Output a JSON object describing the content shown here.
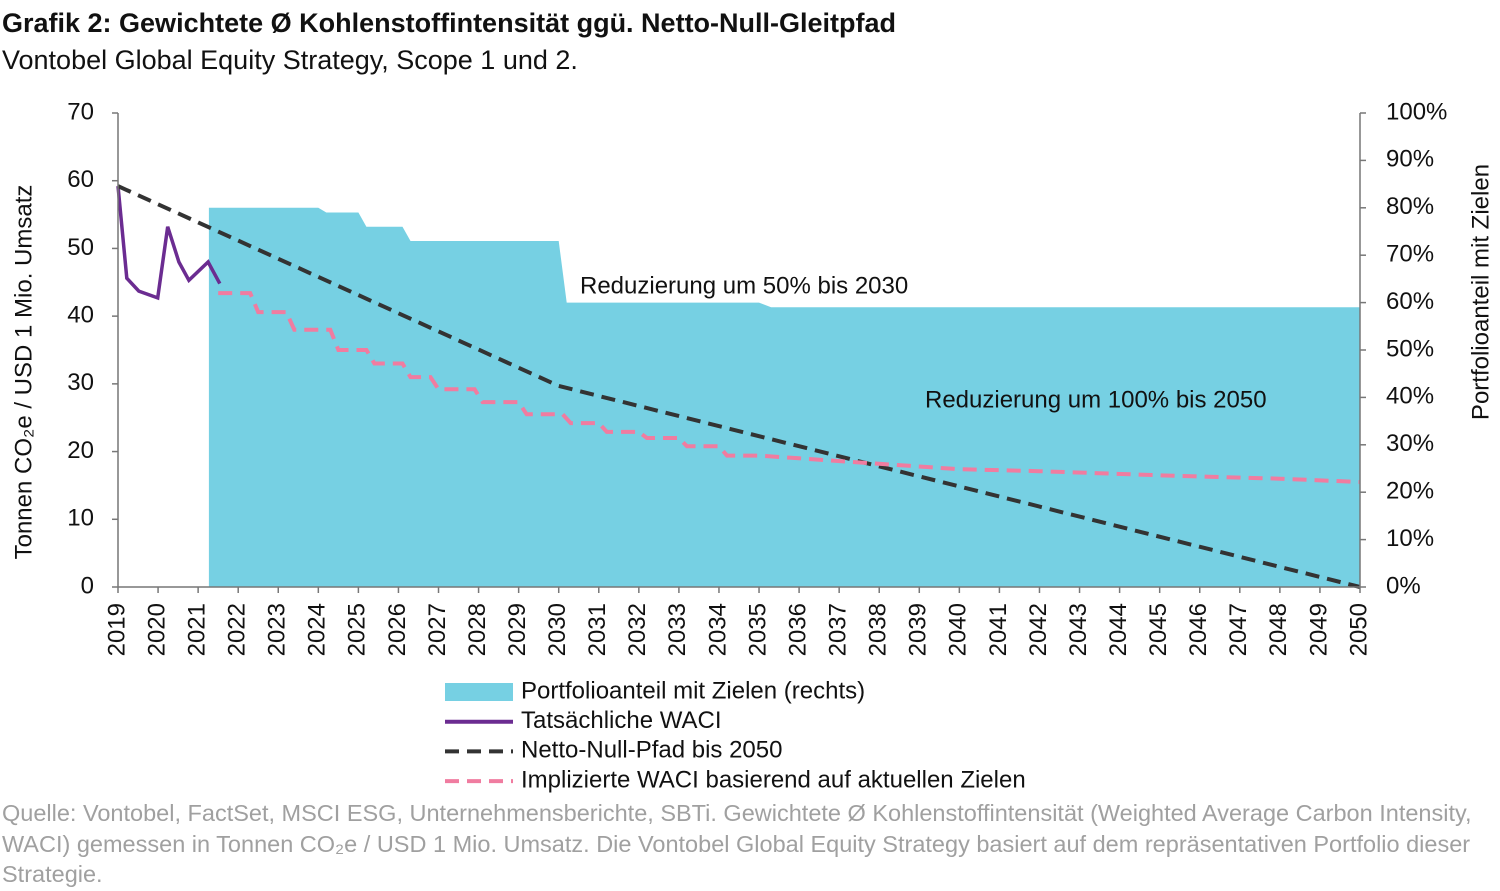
{
  "chart_data": {
    "type": "combo",
    "title": "Grafik 2: Gewichtete Ø Kohlenstoffintensität ggü. Netto-Null-Gleitpfad",
    "subtitle": "Vontobel Global Equity Strategy, Scope 1 und 2.",
    "y_label": "Tonnen CO₂e / USD 1 Mio. Umsatz",
    "y2_label": "Portfolioanteil mit Zielen",
    "xlim": [
      2019,
      2050
    ],
    "xticks": [
      2019,
      2020,
      2021,
      2022,
      2023,
      2024,
      2025,
      2026,
      2027,
      2028,
      2029,
      2030,
      2031,
      2032,
      2033,
      2034,
      2035,
      2036,
      2037,
      2038,
      2039,
      2040,
      2041,
      2042,
      2043,
      2044,
      2045,
      2046,
      2047,
      2048,
      2049,
      2050
    ],
    "ylim": [
      0,
      70
    ],
    "yticks": [
      0,
      10,
      20,
      30,
      40,
      50,
      60,
      70
    ],
    "y2lim": [
      0,
      100
    ],
    "y2ticks": [
      {
        "value": 0,
        "label": "0%"
      },
      {
        "value": 10,
        "label": "10%"
      },
      {
        "value": 20,
        "label": "20%"
      },
      {
        "value": 30,
        "label": "30%"
      },
      {
        "value": 40,
        "label": "40%"
      },
      {
        "value": 50,
        "label": "50%"
      },
      {
        "value": 60,
        "label": "60%"
      },
      {
        "value": 70,
        "label": "70%"
      },
      {
        "value": 80,
        "label": "80%"
      },
      {
        "value": 90,
        "label": "90%"
      },
      {
        "value": 100,
        "label": "100%"
      }
    ],
    "series": [
      {
        "name": "Portfolioanteil mit Zielen (rechts)",
        "type": "area",
        "axis": "y2",
        "color": "#76d0e3",
        "x": [
          2021.27,
          2024.0,
          2024.2,
          2025.0,
          2025.2,
          2026.1,
          2026.3,
          2030.0,
          2030.2,
          2035.0,
          2035.3,
          2050
        ],
        "values": [
          80,
          80,
          79,
          79,
          76,
          76,
          73,
          73,
          60,
          60,
          59,
          59
        ]
      },
      {
        "name": "Tatsächliche WACI",
        "type": "line",
        "color": "#6b2c91",
        "dashed": false,
        "x": [
          2019,
          2019.22,
          2019.52,
          2019.99,
          2020.24,
          2020.52,
          2020.77,
          2021.25,
          2021.54
        ],
        "values": [
          59.2,
          45.6,
          43.7,
          42.7,
          53.2,
          48,
          45.3,
          48,
          44.8
        ]
      },
      {
        "name": "Netto-Null-Pfad bis 2050",
        "type": "line",
        "color": "#333333",
        "dashed": true,
        "x": [
          2019,
          2030,
          2050
        ],
        "values": [
          59.2,
          29.7,
          0
        ]
      },
      {
        "name": "Implizierte WACI basierend auf aktuellen Zielen",
        "type": "line",
        "color": "#f07ca0",
        "dashed": true,
        "x": [
          2021.5,
          2022.3,
          2022.5,
          2023.2,
          2023.4,
          2024.3,
          2024.5,
          2025.2,
          2025.4,
          2026.1,
          2026.3,
          2026.8,
          2027.0,
          2027.9,
          2028.1,
          2029.0,
          2029.2,
          2030.1,
          2030.3,
          2031.0,
          2031.2,
          2032.0,
          2032.2,
          2033.0,
          2033.2,
          2034.0,
          2034.2,
          2035.0,
          2036,
          2038,
          2040,
          2042,
          2045,
          2048,
          2050
        ],
        "values": [
          43.4,
          43.4,
          40.6,
          40.6,
          38,
          38,
          35,
          35,
          33,
          33,
          31,
          31,
          29.2,
          29.2,
          27.3,
          27.3,
          25.5,
          25.5,
          24.2,
          24.2,
          22.9,
          22.9,
          22,
          22,
          20.8,
          20.8,
          19.4,
          19.4,
          19,
          18.2,
          17.4,
          17.1,
          16.5,
          16,
          15.5
        ]
      }
    ],
    "annotations": [
      "Reduzierung um 50% bis 2030",
      "Reduzierung um 100% bis 2050"
    ],
    "note": "Quelle: Vontobel, FactSet, MSCI ESG, Unternehmensberichte, SBTi. Gewichtete Ø Kohlenstoffintensität (Weighted Average Carbon Intensity, WACI) gemessen in Tonnen CO₂e / USD 1 Mio. Umsatz. Die Vontobel Global Equity Strategy basiert auf dem repräsentativen Portfolio dieser Strategie."
  }
}
